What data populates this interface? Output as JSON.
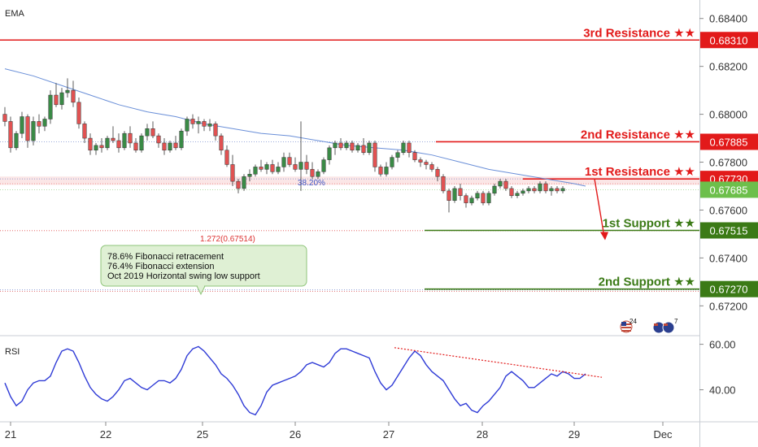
{
  "indicators": {
    "main_label": "EMA",
    "rsi_label": "RSI"
  },
  "colors": {
    "bull": "#3a8a46",
    "bear": "#e05252",
    "ema": "#6a8fd8",
    "rsi": "#2f3bd6",
    "resistance": "#e21a1a",
    "support": "#3b7a16",
    "price_box": "#6dbf4b",
    "note_bg": "#dff0d4",
    "note_border": "#8fc57a",
    "divergence": "#e21a1a"
  },
  "levels": [
    {
      "label": "3rd Resistance ★★",
      "price": "0.68310",
      "kind": "resistance"
    },
    {
      "label": "2nd Resistance ★★",
      "price": "0.67885",
      "kind": "resistance"
    },
    {
      "label": "1st Resistance ★★",
      "price": "0.67730",
      "kind": "resistance"
    },
    {
      "label": "1st Support ★★",
      "price": "0.67515",
      "kind": "support"
    },
    {
      "label": "2nd Support ★★",
      "price": "0.67270",
      "kind": "support"
    }
  ],
  "current_price": "0.67685",
  "fib_labels": {
    "retracement": "38.20%",
    "extension": "1.272(0.67514)"
  },
  "note_lines": [
    "78.6% Fibonacci retracement",
    "76.4% Fibonacci extension",
    "Oct 2019 Horizontal swing low support"
  ],
  "event_badges": [
    {
      "flags": "us",
      "count": "24"
    },
    {
      "flags": "au",
      "count": "7"
    }
  ],
  "chart_data": [
    {
      "type": "candlestick",
      "indicator": "EMA",
      "y_ticks": [
        "0.68400",
        "0.68200",
        "0.68000",
        "0.67800",
        "0.67600",
        "0.67400",
        "0.67200"
      ],
      "ylim": [
        0.6714,
        0.6845
      ],
      "x_ticks": [
        "21",
        "22",
        "25",
        "26",
        "27",
        "28",
        "29",
        "Dec"
      ],
      "levels": [
        0.6831,
        0.67885,
        0.6773,
        0.67515,
        0.6727
      ],
      "fib_38_2": 0.6773,
      "fib_1_272": 0.67514,
      "ema": [
        [
          0,
          0.6819
        ],
        [
          5,
          0.6816
        ],
        [
          10,
          0.6812
        ],
        [
          15,
          0.6808
        ],
        [
          20,
          0.6804
        ],
        [
          25,
          0.6801
        ],
        [
          30,
          0.6799
        ],
        [
          35,
          0.6796
        ],
        [
          40,
          0.6794
        ],
        [
          45,
          0.6792
        ],
        [
          50,
          0.6791
        ],
        [
          55,
          0.6789
        ],
        [
          60,
          0.6787
        ],
        [
          65,
          0.6786
        ],
        [
          70,
          0.6785
        ],
        [
          75,
          0.6783
        ],
        [
          80,
          0.678
        ],
        [
          85,
          0.6777
        ],
        [
          90,
          0.6775
        ],
        [
          95,
          0.6773
        ],
        [
          100,
          0.6771
        ],
        [
          102,
          0.677
        ]
      ],
      "candles": [
        [
          0.68,
          0.6803,
          0.6795,
          0.6797
        ],
        [
          0.6797,
          0.6799,
          0.6784,
          0.6786
        ],
        [
          0.6786,
          0.6793,
          0.6785,
          0.6792
        ],
        [
          0.6792,
          0.6801,
          0.679,
          0.6799
        ],
        [
          0.6799,
          0.68,
          0.6786,
          0.6789
        ],
        [
          0.6789,
          0.6799,
          0.6787,
          0.6797
        ],
        [
          0.6797,
          0.68,
          0.6792,
          0.6795
        ],
        [
          0.6795,
          0.6799,
          0.6793,
          0.6798
        ],
        [
          0.6798,
          0.681,
          0.6796,
          0.6808
        ],
        [
          0.6808,
          0.6813,
          0.6803,
          0.6804
        ],
        [
          0.6804,
          0.6811,
          0.6802,
          0.6809
        ],
        [
          0.6809,
          0.6815,
          0.6807,
          0.681
        ],
        [
          0.681,
          0.6814,
          0.6803,
          0.6805
        ],
        [
          0.6805,
          0.6807,
          0.6794,
          0.6796
        ],
        [
          0.6796,
          0.6797,
          0.6788,
          0.679
        ],
        [
          0.679,
          0.6792,
          0.6783,
          0.6785
        ],
        [
          0.6785,
          0.6788,
          0.6783,
          0.6787
        ],
        [
          0.6787,
          0.679,
          0.6784,
          0.6786
        ],
        [
          0.6786,
          0.6791,
          0.6785,
          0.679
        ],
        [
          0.679,
          0.6795,
          0.6788,
          0.6789
        ],
        [
          0.6789,
          0.6792,
          0.6784,
          0.6786
        ],
        [
          0.6786,
          0.6793,
          0.6785,
          0.6792
        ],
        [
          0.6792,
          0.6795,
          0.6786,
          0.6788
        ],
        [
          0.6788,
          0.679,
          0.6784,
          0.6785
        ],
        [
          0.6785,
          0.6792,
          0.6784,
          0.6791
        ],
        [
          0.6791,
          0.6796,
          0.6789,
          0.6794
        ],
        [
          0.6794,
          0.6797,
          0.679,
          0.6791
        ],
        [
          0.6791,
          0.6792,
          0.6786,
          0.6788
        ],
        [
          0.6788,
          0.679,
          0.6783,
          0.6785
        ],
        [
          0.6785,
          0.6789,
          0.6784,
          0.6788
        ],
        [
          0.6788,
          0.6791,
          0.6785,
          0.6786
        ],
        [
          0.6786,
          0.6794,
          0.6785,
          0.6793
        ],
        [
          0.6793,
          0.6799,
          0.6791,
          0.6798
        ],
        [
          0.6798,
          0.68,
          0.6794,
          0.6796
        ],
        [
          0.6796,
          0.6799,
          0.6792,
          0.6797
        ],
        [
          0.6797,
          0.6798,
          0.6793,
          0.6795
        ],
        [
          0.6795,
          0.6798,
          0.6793,
          0.6796
        ],
        [
          0.6796,
          0.6797,
          0.6789,
          0.6791
        ],
        [
          0.6791,
          0.6792,
          0.6783,
          0.6785
        ],
        [
          0.6785,
          0.6787,
          0.6778,
          0.6779
        ],
        [
          0.6779,
          0.6783,
          0.677,
          0.6772
        ],
        [
          0.6772,
          0.6773,
          0.6767,
          0.6769
        ],
        [
          0.6769,
          0.6775,
          0.6768,
          0.6774
        ],
        [
          0.6774,
          0.6777,
          0.6772,
          0.6775
        ],
        [
          0.6775,
          0.6779,
          0.6774,
          0.6778
        ],
        [
          0.6778,
          0.6781,
          0.6776,
          0.6777
        ],
        [
          0.6777,
          0.678,
          0.6775,
          0.6779
        ],
        [
          0.6779,
          0.6781,
          0.6775,
          0.6776
        ],
        [
          0.6776,
          0.678,
          0.6775,
          0.6778
        ],
        [
          0.6778,
          0.6784,
          0.6776,
          0.6782
        ],
        [
          0.6782,
          0.6784,
          0.6778,
          0.6779
        ],
        [
          0.6779,
          0.6782,
          0.6776,
          0.6777
        ],
        [
          0.6777,
          0.6797,
          0.6768,
          0.678
        ],
        [
          0.678,
          0.6783,
          0.6775,
          0.6777
        ],
        [
          0.6777,
          0.678,
          0.6773,
          0.6774
        ],
        [
          0.6774,
          0.6777,
          0.6773,
          0.6776
        ],
        [
          0.6776,
          0.6782,
          0.6775,
          0.6781
        ],
        [
          0.6781,
          0.6787,
          0.6779,
          0.6786
        ],
        [
          0.6786,
          0.6789,
          0.6783,
          0.6788
        ],
        [
          0.6788,
          0.679,
          0.6785,
          0.6786
        ],
        [
          0.6786,
          0.6789,
          0.6785,
          0.6788
        ],
        [
          0.6788,
          0.6789,
          0.6784,
          0.6785
        ],
        [
          0.6785,
          0.6788,
          0.6784,
          0.6787
        ],
        [
          0.6787,
          0.679,
          0.6783,
          0.6784
        ],
        [
          0.6784,
          0.6789,
          0.6783,
          0.6788
        ],
        [
          0.6788,
          0.6789,
          0.6776,
          0.6778
        ],
        [
          0.6778,
          0.6779,
          0.6774,
          0.6775
        ],
        [
          0.6775,
          0.678,
          0.6774,
          0.6778
        ],
        [
          0.6778,
          0.6783,
          0.6777,
          0.6782
        ],
        [
          0.6782,
          0.6785,
          0.678,
          0.6784
        ],
        [
          0.6784,
          0.6789,
          0.6783,
          0.6788
        ],
        [
          0.6788,
          0.6789,
          0.6782,
          0.6784
        ],
        [
          0.6784,
          0.6785,
          0.678,
          0.6781
        ],
        [
          0.6781,
          0.6782,
          0.6778,
          0.678
        ],
        [
          0.678,
          0.6781,
          0.6777,
          0.6779
        ],
        [
          0.6779,
          0.678,
          0.6776,
          0.6777
        ],
        [
          0.6777,
          0.6778,
          0.6772,
          0.6774
        ],
        [
          0.6774,
          0.6775,
          0.6767,
          0.6768
        ],
        [
          0.6768,
          0.6769,
          0.6759,
          0.6764
        ],
        [
          0.6764,
          0.677,
          0.6763,
          0.6769
        ],
        [
          0.6769,
          0.6771,
          0.6764,
          0.6766
        ],
        [
          0.6766,
          0.6767,
          0.6761,
          0.6763
        ],
        [
          0.6763,
          0.6766,
          0.6762,
          0.6765
        ],
        [
          0.6765,
          0.6768,
          0.6764,
          0.6767
        ],
        [
          0.6767,
          0.6768,
          0.6762,
          0.6763
        ],
        [
          0.6763,
          0.6768,
          0.6762,
          0.6767
        ],
        [
          0.6767,
          0.6771,
          0.6766,
          0.677
        ],
        [
          0.677,
          0.6773,
          0.6769,
          0.6772
        ],
        [
          0.6772,
          0.6773,
          0.6768,
          0.6769
        ],
        [
          0.6769,
          0.677,
          0.6765,
          0.6766
        ],
        [
          0.6766,
          0.6768,
          0.6765,
          0.6767
        ],
        [
          0.6767,
          0.6769,
          0.6766,
          0.6768
        ],
        [
          0.6768,
          0.677,
          0.6767,
          0.6769
        ],
        [
          0.6769,
          0.677,
          0.6767,
          0.6768
        ],
        [
          0.6768,
          0.6772,
          0.6767,
          0.6771
        ],
        [
          0.6771,
          0.6772,
          0.6767,
          0.6768
        ],
        [
          0.6768,
          0.677,
          0.6766,
          0.6769
        ],
        [
          0.6769,
          0.677,
          0.6767,
          0.6768
        ],
        [
          0.6768,
          0.677,
          0.6767,
          0.6769
        ]
      ]
    },
    {
      "type": "line",
      "indicator": "RSI",
      "y_ticks": [
        "60.00",
        "40.00"
      ],
      "ylim": [
        27,
        62
      ],
      "divergence_line": [
        [
          0.6831,
          0.6831
        ]
      ],
      "values": [
        43,
        37,
        33,
        35,
        40,
        43,
        44,
        44,
        46,
        52,
        57,
        58,
        57,
        52,
        46,
        41,
        38,
        36,
        35,
        37,
        40,
        44,
        45,
        43,
        41,
        40,
        42,
        44,
        44,
        43,
        45,
        49,
        55,
        58,
        59,
        57,
        54,
        51,
        47,
        45,
        42,
        38,
        33,
        30,
        29,
        33,
        39,
        42,
        43,
        44,
        45,
        46,
        48,
        51,
        52,
        51,
        50,
        52,
        56,
        58,
        58,
        57,
        56,
        55,
        54,
        48,
        43,
        40,
        42,
        46,
        50,
        54,
        57,
        55,
        51,
        48,
        46,
        44,
        40,
        36,
        33,
        34,
        31,
        30,
        33,
        35,
        38,
        41,
        46,
        48,
        46,
        44,
        41,
        41,
        43,
        45,
        47,
        46,
        48,
        47,
        45,
        45,
        47
      ]
    }
  ]
}
